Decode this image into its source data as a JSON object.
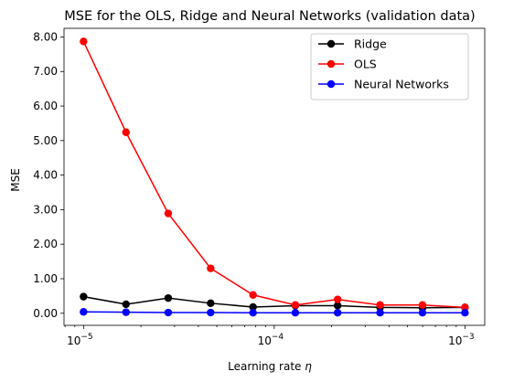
{
  "chart_data": {
    "type": "line",
    "title": "MSE for the OLS, Ridge and Neural Networks (validation data)",
    "xlabel": "Learning rate η",
    "ylabel": "MSE",
    "xscale": "log",
    "xlim": [
      7.9e-06,
      0.00127
    ],
    "ylim": [
      -0.35,
      8.25
    ],
    "xticks": [
      {
        "value": 1e-05,
        "base": "10",
        "exp": "−5"
      },
      {
        "value": 0.0001,
        "base": "10",
        "exp": "−4"
      },
      {
        "value": 0.001,
        "base": "10",
        "exp": "−3"
      }
    ],
    "yticks": [
      "0.00",
      "1.00",
      "2.00",
      "3.00",
      "4.00",
      "5.00",
      "6.00",
      "7.00",
      "8.00"
    ],
    "x": [
      1e-05,
      1.67e-05,
      2.78e-05,
      4.64e-05,
      7.74e-05,
      0.000129,
      0.000215,
      0.000359,
      0.000599,
      0.001
    ],
    "series": [
      {
        "name": "Ridge",
        "color": "#000000",
        "values": [
          0.48,
          0.26,
          0.44,
          0.29,
          0.18,
          0.22,
          0.22,
          0.17,
          0.16,
          0.17
        ]
      },
      {
        "name": "OLS",
        "color": "#ff0000",
        "values": [
          7.87,
          5.24,
          2.89,
          1.3,
          0.53,
          0.24,
          0.4,
          0.24,
          0.24,
          0.17
        ]
      },
      {
        "name": "Neural Networks",
        "color": "#0000ff",
        "values": [
          0.04,
          0.03,
          0.02,
          0.02,
          0.015,
          0.015,
          0.015,
          0.015,
          0.015,
          0.015
        ]
      }
    ],
    "legend": "top-right",
    "grid": false
  }
}
